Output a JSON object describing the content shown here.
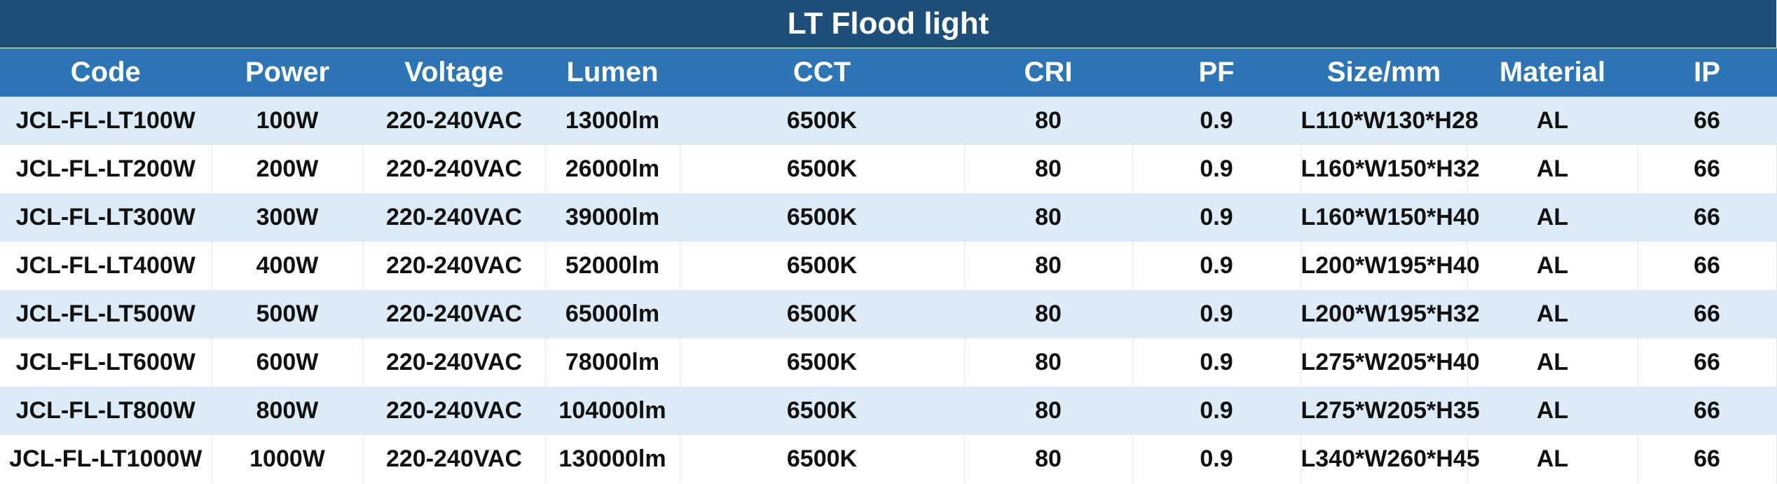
{
  "title": "LT Flood light",
  "columns": [
    "Code",
    "Power",
    "Voltage",
    "Lumen",
    "CCT",
    "CRI",
    "PF",
    "Size/mm",
    "Material",
    "IP"
  ],
  "rows": [
    [
      "JCL-FL-LT100W",
      "100W",
      "220-240VAC",
      "13000lm",
      "6500K",
      "80",
      "0.9",
      "L110*W130*H28",
      "AL",
      "66"
    ],
    [
      "JCL-FL-LT200W",
      "200W",
      "220-240VAC",
      "26000lm",
      "6500K",
      "80",
      "0.9",
      "L160*W150*H32",
      "AL",
      "66"
    ],
    [
      "JCL-FL-LT300W",
      "300W",
      "220-240VAC",
      "39000lm",
      "6500K",
      "80",
      "0.9",
      "L160*W150*H40",
      "AL",
      "66"
    ],
    [
      "JCL-FL-LT400W",
      "400W",
      "220-240VAC",
      "52000lm",
      "6500K",
      "80",
      "0.9",
      "L200*W195*H40",
      "AL",
      "66"
    ],
    [
      "JCL-FL-LT500W",
      "500W",
      "220-240VAC",
      "65000lm",
      "6500K",
      "80",
      "0.9",
      "L200*W195*H32",
      "AL",
      "66"
    ],
    [
      "JCL-FL-LT600W",
      "600W",
      "220-240VAC",
      "78000lm",
      "6500K",
      "80",
      "0.9",
      "L275*W205*H40",
      "AL",
      "66"
    ],
    [
      "JCL-FL-LT800W",
      "800W",
      "220-240VAC",
      "104000lm",
      "6500K",
      "80",
      "0.9",
      "L275*W205*H35",
      "AL",
      "66"
    ],
    [
      "JCL-FL-LT1000W",
      "1000W",
      "220-240VAC",
      "130000lm",
      "6500K",
      "80",
      "0.9",
      "L340*W260*H45",
      "AL",
      "66"
    ]
  ],
  "colors": {
    "title_bg": "#1f4e79",
    "header_bg": "#2e75b6",
    "stripe_bg": "#ddebf7"
  }
}
